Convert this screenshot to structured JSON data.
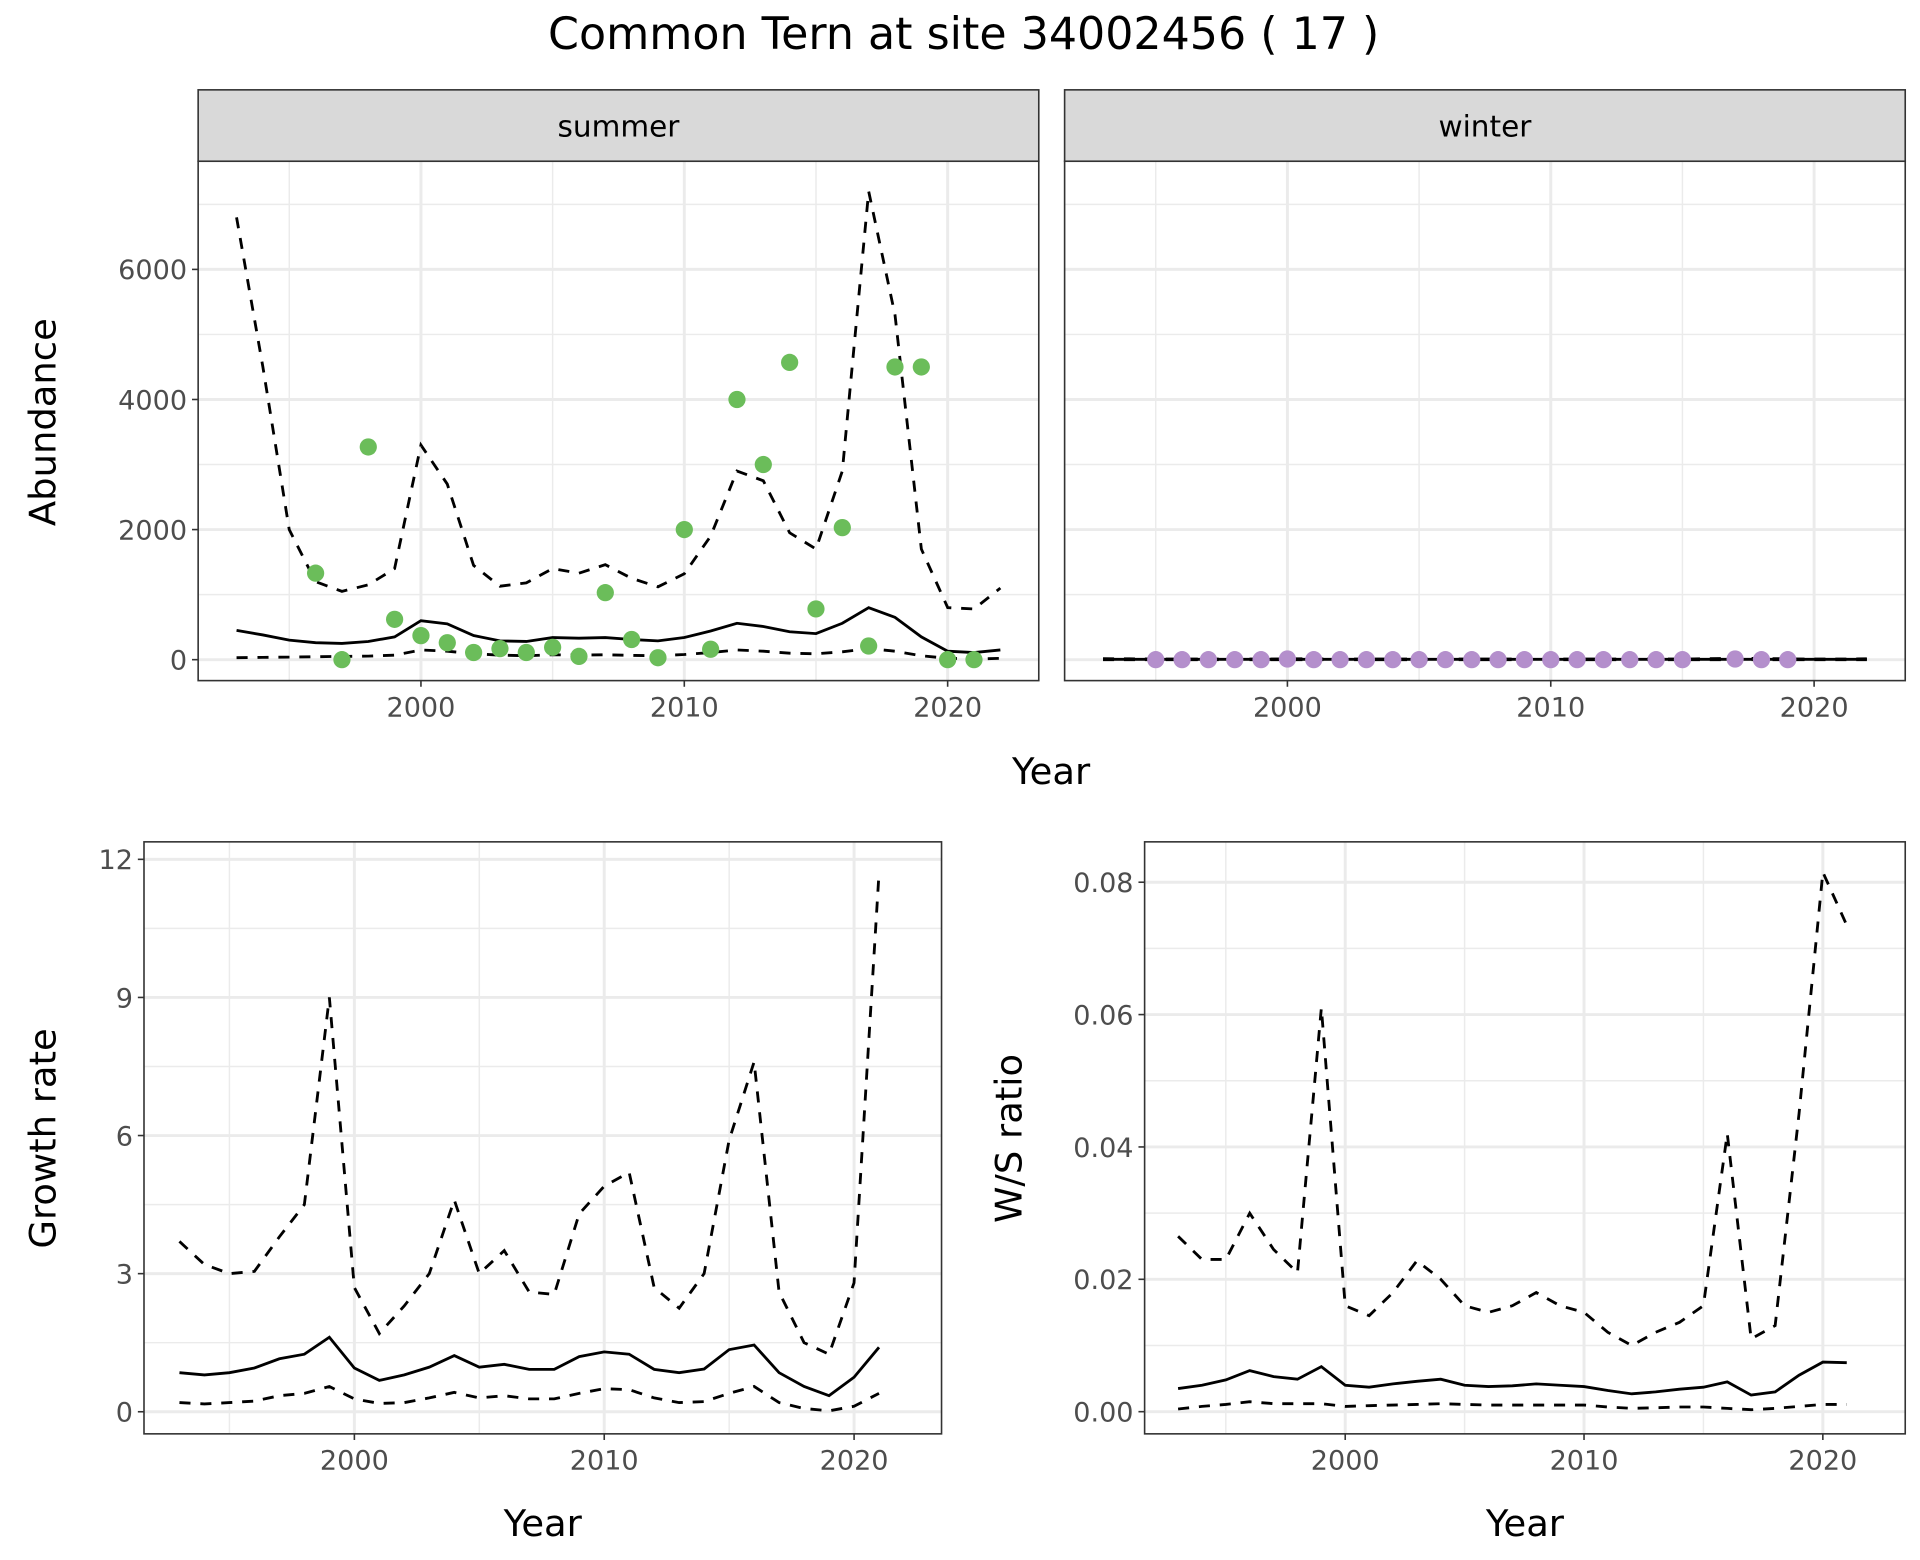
{
  "title": "Common Tern at site 34002456 ( 17 )",
  "colors": {
    "summer_points": "#6BBD5A",
    "winter_points": "#B48FCC",
    "grid": "#EBEBEB",
    "strip": "#D9D9D9"
  },
  "chart_data": [
    {
      "id": "abundance",
      "type": "line",
      "facets": [
        {
          "strip": "summer",
          "years": [
            1993,
            1994,
            1995,
            1996,
            1997,
            1998,
            1999,
            2000,
            2001,
            2002,
            2003,
            2004,
            2005,
            2006,
            2007,
            2008,
            2009,
            2010,
            2011,
            2012,
            2013,
            2014,
            2015,
            2016,
            2017,
            2018,
            2019,
            2020,
            2021,
            2022
          ],
          "estimate": [
            450,
            380,
            300,
            260,
            250,
            280,
            350,
            600,
            550,
            370,
            290,
            280,
            340,
            330,
            340,
            310,
            290,
            340,
            440,
            560,
            510,
            430,
            400,
            560,
            800,
            650,
            350,
            130,
            110,
            150
          ],
          "upper": [
            6800,
            4500,
            2000,
            1200,
            1050,
            1150,
            1400,
            3300,
            2700,
            1450,
            1130,
            1180,
            1400,
            1330,
            1460,
            1250,
            1120,
            1320,
            1900,
            2900,
            2750,
            1950,
            1700,
            2900,
            7200,
            5300,
            1700,
            800,
            780,
            1100
          ],
          "lower": [
            30,
            35,
            40,
            45,
            50,
            55,
            70,
            150,
            130,
            90,
            70,
            60,
            75,
            70,
            75,
            65,
            60,
            80,
            110,
            150,
            130,
            100,
            90,
            120,
            170,
            130,
            60,
            20,
            10,
            20
          ],
          "obs_years": [
            1996,
            1997,
            1998,
            1999,
            2000,
            2001,
            2002,
            2003,
            2004,
            2005,
            2006,
            2007,
            2008,
            2009,
            2010,
            2011,
            2012,
            2013,
            2014,
            2015,
            2016,
            2017,
            2018,
            2019,
            2020,
            2021
          ],
          "obs": [
            1330,
            0,
            3270,
            620,
            370,
            260,
            110,
            170,
            110,
            190,
            50,
            1030,
            310,
            30,
            2000,
            160,
            4000,
            3000,
            4570,
            780,
            2030,
            210,
            4500,
            4500,
            0,
            0
          ]
        },
        {
          "strip": "winter",
          "years": [
            1993,
            1994,
            1995,
            1996,
            1997,
            1998,
            1999,
            2000,
            2001,
            2002,
            2003,
            2004,
            2005,
            2006,
            2007,
            2008,
            2009,
            2010,
            2011,
            2012,
            2013,
            2014,
            2015,
            2016,
            2017,
            2018,
            2019,
            2020,
            2021,
            2022
          ],
          "estimate": [
            5,
            5,
            5,
            5,
            5,
            5,
            5,
            5,
            5,
            5,
            5,
            5,
            5,
            5,
            5,
            5,
            5,
            5,
            5,
            5,
            5,
            5,
            5,
            5,
            5,
            5,
            5,
            5,
            5,
            5
          ],
          "upper": [
            15,
            12,
            10,
            10,
            10,
            10,
            10,
            12,
            12,
            10,
            10,
            10,
            10,
            10,
            10,
            10,
            10,
            10,
            10,
            10,
            10,
            10,
            10,
            15,
            20,
            18,
            12,
            10,
            10,
            12
          ],
          "lower": [
            0,
            0,
            0,
            0,
            0,
            0,
            0,
            0,
            0,
            0,
            0,
            0,
            0,
            0,
            0,
            0,
            0,
            0,
            0,
            0,
            0,
            0,
            0,
            0,
            0,
            0,
            0,
            0,
            0,
            0
          ],
          "obs_years": [
            1995,
            1996,
            1997,
            1998,
            1999,
            2000,
            2001,
            2002,
            2003,
            2004,
            2005,
            2006,
            2007,
            2008,
            2009,
            2010,
            2011,
            2012,
            2013,
            2014,
            2015,
            2017,
            2018,
            2019
          ],
          "obs": [
            0,
            0,
            0,
            0,
            0,
            10,
            0,
            0,
            0,
            0,
            0,
            0,
            0,
            0,
            0,
            0,
            0,
            0,
            0,
            0,
            0,
            10,
            0,
            0
          ]
        }
      ],
      "xlabel": "Year",
      "ylabel": "Abundance",
      "xlim": [
        1991.54,
        2023.46
      ],
      "ylim": [
        -322,
        7663
      ],
      "xticks": [
        2000,
        2010,
        2020
      ],
      "xtick_labels": [
        "2000",
        "2010",
        "2020"
      ],
      "xminor": [
        1995,
        2005,
        2015
      ],
      "yticks": [
        0,
        2000,
        4000,
        6000
      ],
      "ytick_labels": [
        "0",
        "2000",
        "4000",
        "6000"
      ],
      "yminor": [
        1000,
        3000,
        5000,
        7000
      ],
      "grid": true
    },
    {
      "id": "growth",
      "type": "line",
      "years": [
        1993,
        1994,
        1995,
        1996,
        1997,
        1998,
        1999,
        2000,
        2001,
        2002,
        2003,
        2004,
        2005,
        2006,
        2007,
        2008,
        2009,
        2010,
        2011,
        2012,
        2013,
        2014,
        2015,
        2016,
        2017,
        2018,
        2019,
        2020,
        2021
      ],
      "estimate": [
        0.85,
        0.8,
        0.85,
        0.95,
        1.15,
        1.25,
        1.62,
        0.95,
        0.68,
        0.8,
        0.97,
        1.22,
        0.97,
        1.03,
        0.92,
        0.92,
        1.2,
        1.3,
        1.25,
        0.92,
        0.85,
        0.93,
        1.35,
        1.45,
        0.85,
        0.55,
        0.35,
        0.75,
        1.4
      ],
      "upper": [
        3.7,
        3.2,
        3.0,
        3.05,
        3.8,
        4.5,
        9.0,
        2.7,
        1.7,
        2.3,
        3.0,
        4.6,
        3.0,
        3.5,
        2.6,
        2.55,
        4.3,
        4.9,
        5.2,
        2.7,
        2.25,
        3.0,
        5.9,
        7.6,
        2.6,
        1.5,
        1.25,
        2.8,
        11.7
      ],
      "lower": [
        0.2,
        0.17,
        0.2,
        0.23,
        0.35,
        0.4,
        0.55,
        0.28,
        0.18,
        0.2,
        0.3,
        0.42,
        0.3,
        0.35,
        0.28,
        0.28,
        0.4,
        0.5,
        0.48,
        0.3,
        0.2,
        0.22,
        0.4,
        0.55,
        0.2,
        0.07,
        0.02,
        0.12,
        0.4
      ],
      "xlabel": "Year",
      "ylabel": "Growth rate",
      "xlim": [
        1991.58,
        2023.5
      ],
      "ylim": [
        -0.48,
        12.38
      ],
      "xticks": [
        2000,
        2010,
        2020
      ],
      "xtick_labels": [
        "2000",
        "2010",
        "2020"
      ],
      "xminor": [
        1995,
        2005,
        2015
      ],
      "yticks": [
        0,
        3,
        6,
        9,
        12
      ],
      "ytick_labels": [
        "0",
        "3",
        "6",
        "9",
        "12"
      ],
      "yminor": [
        1.5,
        4.5,
        7.5,
        10.5
      ],
      "grid": true
    },
    {
      "id": "ws_ratio",
      "type": "line",
      "years": [
        1993,
        1994,
        1995,
        1996,
        1997,
        1998,
        1999,
        2000,
        2001,
        2002,
        2003,
        2004,
        2005,
        2006,
        2007,
        2008,
        2009,
        2010,
        2011,
        2012,
        2013,
        2014,
        2015,
        2016,
        2017,
        2018,
        2019,
        2020,
        2021
      ],
      "estimate": [
        0.0035,
        0.004,
        0.0048,
        0.0062,
        0.0053,
        0.0049,
        0.0068,
        0.004,
        0.0037,
        0.0042,
        0.0046,
        0.0049,
        0.004,
        0.0038,
        0.0039,
        0.0042,
        0.004,
        0.0038,
        0.0032,
        0.0027,
        0.003,
        0.0034,
        0.0037,
        0.0045,
        0.0025,
        0.003,
        0.0055,
        0.0075,
        0.0074
      ],
      "upper": [
        0.0265,
        0.023,
        0.023,
        0.03,
        0.0245,
        0.021,
        0.061,
        0.016,
        0.0145,
        0.018,
        0.0228,
        0.02,
        0.016,
        0.015,
        0.016,
        0.018,
        0.016,
        0.015,
        0.012,
        0.01,
        0.012,
        0.0135,
        0.016,
        0.042,
        0.011,
        0.013,
        0.045,
        0.0815,
        0.0735
      ],
      "lower": [
        0.0004,
        0.0008,
        0.0011,
        0.0015,
        0.0012,
        0.0012,
        0.0012,
        0.0008,
        0.0009,
        0.001,
        0.0011,
        0.0012,
        0.0011,
        0.001,
        0.001,
        0.001,
        0.001,
        0.001,
        0.0007,
        0.0005,
        0.0006,
        0.0007,
        0.0007,
        0.0005,
        0.0003,
        0.0005,
        0.0008,
        0.0011,
        0.0011
      ],
      "xlabel": "Year",
      "ylabel": "W/S ratio",
      "xlim": [
        1991.6,
        2023.45
      ],
      "ylim": [
        -0.00335,
        0.0861
      ],
      "xticks": [
        2000,
        2010,
        2020
      ],
      "xtick_labels": [
        "2000",
        "2010",
        "2020"
      ],
      "xminor": [
        1995,
        2005,
        2015
      ],
      "yticks": [
        0,
        0.02,
        0.04,
        0.06,
        0.08
      ],
      "ytick_labels": [
        "0.00",
        "0.02",
        "0.04",
        "0.06",
        "0.08"
      ],
      "yminor": [
        0.01,
        0.03,
        0.05,
        0.07
      ],
      "grid": true
    }
  ]
}
